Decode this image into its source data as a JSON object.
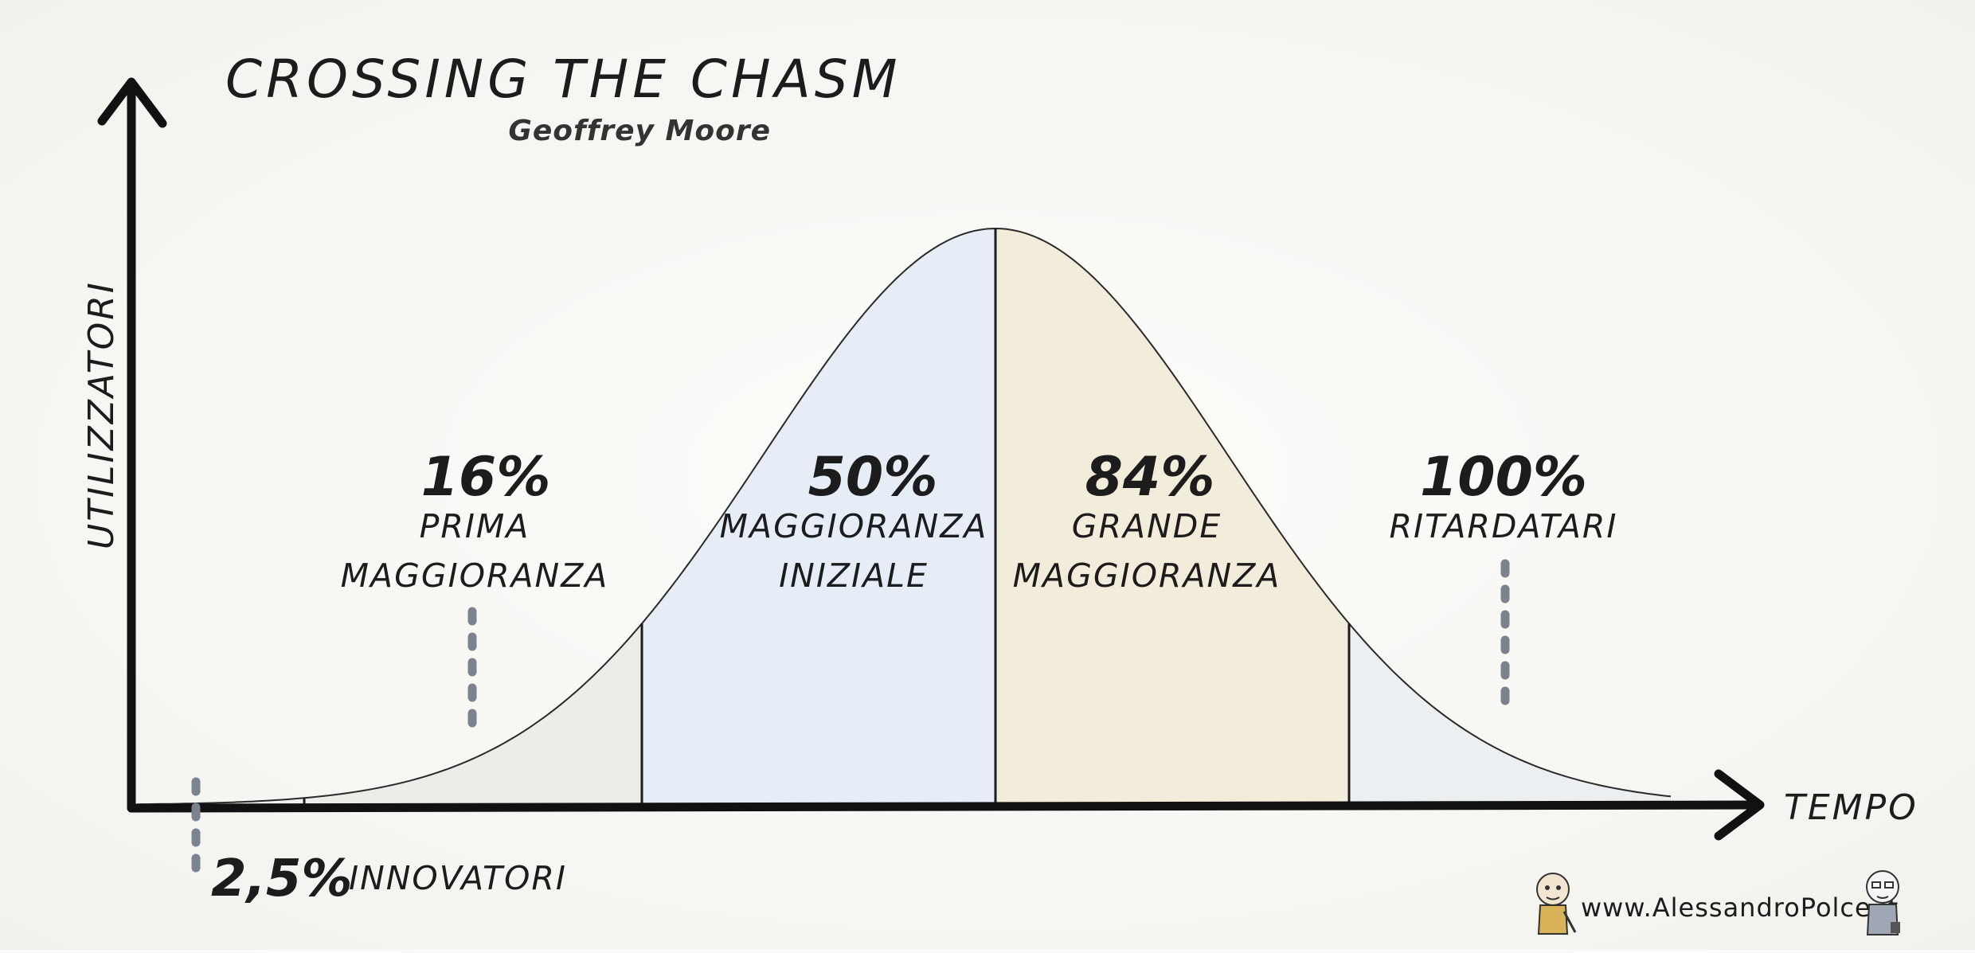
{
  "header": {
    "title": "CROSSING THE CHASM",
    "subtitle": "Geoffrey Moore"
  },
  "axes": {
    "y_label": "UTILIZZATORI",
    "x_label": "TEMPO"
  },
  "segments": [
    {
      "percent": "2,5%",
      "label": "INNOVATORI",
      "fill": "#eff1f3"
    },
    {
      "percent": "16%",
      "line1": "PRIMA",
      "line2": "MAGGIORANZA",
      "fill": "#edece8"
    },
    {
      "percent": "50%",
      "line1": "MAGGIORANZA",
      "line2": "INIZIALE",
      "fill": "#e6edf7"
    },
    {
      "percent": "84%",
      "line1": "GRANDE",
      "line2": "MAGGIORANZA",
      "fill": "#f2edda"
    },
    {
      "percent": "100%",
      "line1": "RITARDATARI",
      "fill": "#eceff2"
    }
  ],
  "footer": {
    "website": "www.AlessandroPolce.it"
  },
  "colors": {
    "axis": "#111111",
    "dashes": "#7a838e",
    "curve": "#2a2a2a"
  }
}
